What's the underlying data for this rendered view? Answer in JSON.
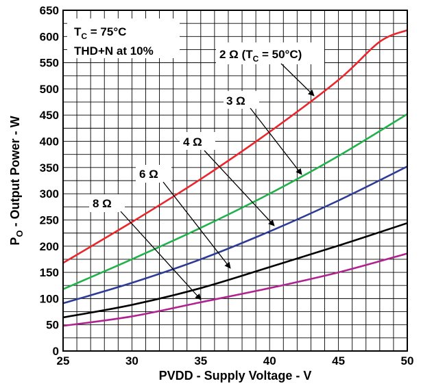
{
  "chart_data": {
    "type": "line",
    "xlabel": "PVDD - Supply Voltage - V",
    "ylabel": {
      "main": "P",
      "sub": "O",
      "rest": " - Output Power - W"
    },
    "xlim": [
      25,
      50
    ],
    "ylim": [
      0,
      650
    ],
    "x_ticks": [
      25,
      30,
      35,
      40,
      45,
      50
    ],
    "y_ticks": [
      0,
      50,
      100,
      150,
      200,
      250,
      300,
      350,
      400,
      450,
      500,
      550,
      600,
      650
    ],
    "grid": true,
    "annotations": {
      "condition1": {
        "main": "T",
        "sub": "C",
        "rest": " = 75°C"
      },
      "condition2": "THD+N at 10%"
    },
    "series": [
      {
        "label": {
          "main": "2 Ω (T",
          "sub": "C",
          "rest": " = 50°C)"
        },
        "color": "#e8262b",
        "x": [
          25,
          30,
          35,
          40,
          45,
          48,
          50
        ],
        "y": [
          168,
          246,
          328,
          418,
          517,
          590,
          612
        ]
      },
      {
        "label": {
          "main": "3 Ω",
          "sub": "",
          "rest": ""
        },
        "color": "#21b14b",
        "x": [
          25,
          30,
          35,
          40,
          45,
          50
        ],
        "y": [
          118,
          175,
          235,
          300,
          372,
          452
        ]
      },
      {
        "label": {
          "main": "4 Ω",
          "sub": "",
          "rest": ""
        },
        "color": "#2c3b95",
        "x": [
          25,
          30,
          35,
          40,
          45,
          50
        ],
        "y": [
          91,
          130,
          175,
          228,
          287,
          352
        ]
      },
      {
        "label": {
          "main": "6 Ω",
          "sub": "",
          "rest": ""
        },
        "color": "#000000",
        "x": [
          25,
          30,
          35,
          40,
          45,
          50
        ],
        "y": [
          64,
          88,
          120,
          160,
          201,
          244
        ]
      },
      {
        "label": {
          "main": "8 Ω",
          "sub": "",
          "rest": ""
        },
        "color": "#b0238e",
        "x": [
          25,
          30,
          35,
          40,
          45,
          50
        ],
        "y": [
          48,
          66,
          93,
          120,
          150,
          186
        ]
      }
    ]
  }
}
